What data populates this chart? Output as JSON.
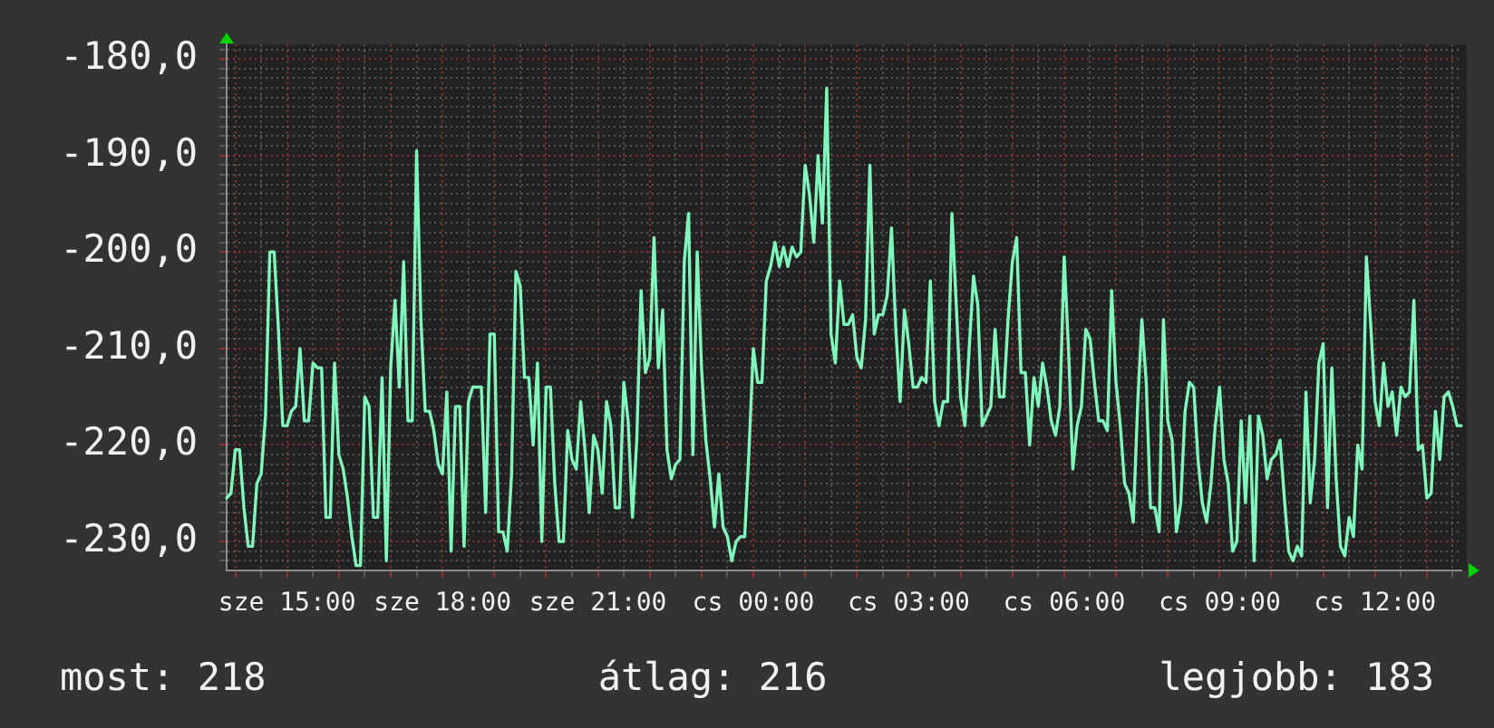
{
  "chart_data": {
    "type": "line",
    "color": "#80f5bc",
    "grid": true,
    "legend": false,
    "categories": [
      null,
      null,
      null,
      null,
      null,
      null,
      null,
      null,
      null,
      null,
      null,
      null,
      null,
      null,
      "sze 15:00",
      null,
      null,
      null,
      null,
      null,
      null,
      null,
      null,
      null,
      null,
      null,
      null,
      null,
      null,
      null,
      null,
      null,
      null,
      null,
      null,
      null,
      null,
      null,
      null,
      null,
      null,
      null,
      null,
      null,
      null,
      null,
      null,
      null,
      null,
      null,
      "sze 18:00",
      null,
      null,
      null,
      null,
      null,
      null,
      null,
      null,
      null,
      null,
      null,
      null,
      null,
      null,
      null,
      null,
      null,
      null,
      null,
      null,
      null,
      null,
      null,
      null,
      null,
      null,
      null,
      null,
      null,
      null,
      null,
      null,
      null,
      null,
      null,
      "sze 21:00",
      null,
      null,
      null,
      null,
      null,
      null,
      null,
      null,
      null,
      null,
      null,
      null,
      null,
      null,
      null,
      null,
      null,
      null,
      null,
      null,
      null,
      null,
      null,
      null,
      null,
      null,
      null,
      null,
      null,
      null,
      null,
      null,
      null,
      null,
      null,
      "cs 00:00",
      null,
      null,
      null,
      null,
      null,
      null,
      null,
      null,
      null,
      null,
      null,
      null,
      null,
      null,
      null,
      null,
      null,
      null,
      null,
      null,
      null,
      null,
      null,
      null,
      null,
      null,
      null,
      null,
      null,
      null,
      null,
      null,
      null,
      null,
      null,
      "cs 03:00",
      null,
      null,
      null,
      null,
      null,
      null,
      null,
      null,
      null,
      null,
      null,
      null,
      null,
      null,
      null,
      null,
      null,
      null,
      null,
      null,
      null,
      null,
      null,
      null,
      null,
      null,
      null,
      null,
      null,
      null,
      null,
      null,
      null,
      null,
      null,
      "cs 06:00",
      null,
      null,
      null,
      null,
      null,
      null,
      null,
      null,
      null,
      null,
      null,
      null,
      null,
      null,
      null,
      null,
      null,
      null,
      null,
      null,
      null,
      null,
      null,
      null,
      null,
      null,
      null,
      null,
      null,
      null,
      null,
      null,
      null,
      null,
      null,
      "cs 09:00",
      null,
      null,
      null,
      null,
      null,
      null,
      null,
      null,
      null,
      null,
      null,
      null,
      null,
      null,
      null,
      null,
      null,
      null,
      null,
      null,
      null,
      null,
      null,
      null,
      null,
      null,
      null,
      null,
      null,
      null,
      null,
      null,
      null,
      null,
      null,
      "cs 12:00",
      null,
      null,
      null,
      null,
      null,
      null,
      null,
      null,
      null,
      null,
      null,
      null,
      null,
      null,
      null,
      null,
      null,
      null,
      null,
      null
    ],
    "values": [
      -225.5,
      -225,
      -220.5,
      -220.5,
      -226.5,
      -230.5,
      -230.5,
      -224,
      -223,
      -217,
      -200,
      -200,
      -208,
      -218,
      -218,
      -216.5,
      -216,
      -210,
      -217.5,
      -217.5,
      -211.5,
      -212,
      -212,
      -227.5,
      -227.5,
      -211.5,
      -221,
      -222.5,
      -225.5,
      -229.5,
      -232.5,
      -232.5,
      -215,
      -216,
      -227.5,
      -227.5,
      -213,
      -232,
      -212,
      -205,
      -214,
      -201,
      -217.5,
      -217.5,
      -189.5,
      -207,
      -216.5,
      -216.5,
      -218.5,
      -222,
      -223,
      -214.5,
      -231,
      -216,
      -216,
      -230.5,
      -215.5,
      -214,
      -214,
      -214,
      -227,
      -208.5,
      -208.5,
      -229,
      -229,
      -231,
      -223,
      -202,
      -203.5,
      -213,
      -213,
      -220,
      -211.5,
      -230,
      -214,
      -214,
      -224,
      -230,
      -230,
      -218.5,
      -221.5,
      -222.5,
      -215.5,
      -220.5,
      -227,
      -219,
      -220.5,
      -225,
      -215.5,
      -218,
      -226.5,
      -226.5,
      -213.5,
      -217.5,
      -227.5,
      -219.5,
      -204,
      -212.5,
      -211,
      -198.5,
      -212,
      -206,
      -220.5,
      -223.5,
      -222,
      -221.5,
      -201,
      -196,
      -221,
      -200,
      -212,
      -219.5,
      -223.5,
      -228.5,
      -223,
      -228.5,
      -229.5,
      -232,
      -230,
      -229.5,
      -229.5,
      -220.5,
      -210,
      -213.5,
      -213.5,
      -203,
      -201.5,
      -199,
      -201.5,
      -199.5,
      -201.5,
      -199.5,
      -200.5,
      -200,
      -191,
      -194,
      -199,
      -190,
      -197,
      -183,
      -208.5,
      -211.5,
      -203,
      -207.5,
      -207.5,
      -206.5,
      -211,
      -212,
      -207,
      -191,
      -208.5,
      -206.5,
      -206.5,
      -204.5,
      -197.5,
      -208,
      -215.5,
      -206,
      -209.5,
      -214,
      -214,
      -213,
      -213.5,
      -203,
      -215.5,
      -218,
      -215.5,
      -215.5,
      -196,
      -205.5,
      -215,
      -218,
      -210,
      -202.5,
      -205.5,
      -218,
      -217,
      -216,
      -208,
      -215,
      -215,
      -207,
      -201,
      -198.5,
      -212.5,
      -212.5,
      -220,
      -213,
      -216,
      -211.5,
      -214,
      -217.5,
      -219,
      -216,
      -200.5,
      -210,
      -222.5,
      -218,
      -216,
      -208,
      -209,
      -213.5,
      -217.5,
      -217.5,
      -218.5,
      -204,
      -213.5,
      -218,
      -224,
      -225,
      -228,
      -216,
      -207,
      -213.5,
      -226.5,
      -226.5,
      -229,
      -207,
      -217.5,
      -219.5,
      -229,
      -226,
      -216.5,
      -213.5,
      -214,
      -221.5,
      -226,
      -228,
      -224,
      -218,
      -214,
      -221.5,
      -224,
      -231,
      -230,
      -217.5,
      -226,
      -217,
      -232,
      -217,
      -219,
      -223.5,
      -221.5,
      -221,
      -219.5,
      -225.5,
      -231,
      -232,
      -230.5,
      -231.5,
      -214.5,
      -226,
      -221.5,
      -211.5,
      -209.5,
      -226.5,
      -212,
      -223.5,
      -230.5,
      -231.5,
      -227.5,
      -229.5,
      -220,
      -222.5,
      -200.5,
      -207.5,
      -215.5,
      -218,
      -211.5,
      -216,
      -214.5,
      -219,
      -214,
      -215,
      -214.5,
      -205,
      -220.5,
      -220,
      -225.5,
      -225,
      -216.5,
      -221.5,
      -215,
      -214.5,
      -216,
      -218,
      -218
    ],
    "ylim": [
      -233,
      -178.5
    ],
    "yticks": [
      {
        "value": -232,
        "label": null
      },
      {
        "value": -231,
        "label": null
      },
      {
        "value": -230,
        "label": "-230,0"
      },
      {
        "value": -229,
        "label": null
      },
      {
        "value": -228,
        "label": null
      },
      {
        "value": -227,
        "label": null
      },
      {
        "value": -226,
        "label": null
      },
      {
        "value": -225,
        "label": null
      },
      {
        "value": -224,
        "label": null
      },
      {
        "value": -223,
        "label": null
      },
      {
        "value": -222,
        "label": null
      },
      {
        "value": -221,
        "label": null
      },
      {
        "value": -220,
        "label": "-220,0"
      },
      {
        "value": -219,
        "label": null
      },
      {
        "value": -218,
        "label": null
      },
      {
        "value": -217,
        "label": null
      },
      {
        "value": -216,
        "label": null
      },
      {
        "value": -215,
        "label": null
      },
      {
        "value": -214,
        "label": null
      },
      {
        "value": -213,
        "label": null
      },
      {
        "value": -212,
        "label": null
      },
      {
        "value": -211,
        "label": null
      },
      {
        "value": -210,
        "label": "-210,0"
      },
      {
        "value": -209,
        "label": null
      },
      {
        "value": -208,
        "label": null
      },
      {
        "value": -207,
        "label": null
      },
      {
        "value": -206,
        "label": null
      },
      {
        "value": -205,
        "label": null
      },
      {
        "value": -204,
        "label": null
      },
      {
        "value": -203,
        "label": null
      },
      {
        "value": -202,
        "label": null
      },
      {
        "value": -201,
        "label": null
      },
      {
        "value": -200,
        "label": "-200,0"
      },
      {
        "value": -199,
        "label": null
      },
      {
        "value": -198,
        "label": null
      },
      {
        "value": -197,
        "label": null
      },
      {
        "value": -196,
        "label": null
      },
      {
        "value": -195,
        "label": null
      },
      {
        "value": -194,
        "label": null
      },
      {
        "value": -193,
        "label": null
      },
      {
        "value": -192,
        "label": null
      },
      {
        "value": -191,
        "label": null
      },
      {
        "value": -190,
        "label": "-190,0"
      },
      {
        "value": -189,
        "label": null
      },
      {
        "value": -188,
        "label": null
      },
      {
        "value": -187,
        "label": null
      },
      {
        "value": -186,
        "label": null
      },
      {
        "value": -185,
        "label": null
      },
      {
        "value": -184,
        "label": null
      },
      {
        "value": -183,
        "label": null
      },
      {
        "value": -182,
        "label": null
      },
      {
        "value": -181,
        "label": null
      },
      {
        "value": -180,
        "label": "-180,0"
      },
      {
        "value": -179,
        "label": null
      }
    ],
    "annotations": [
      "most: 218",
      "átlag: 216",
      "legjobb: 183"
    ]
  }
}
